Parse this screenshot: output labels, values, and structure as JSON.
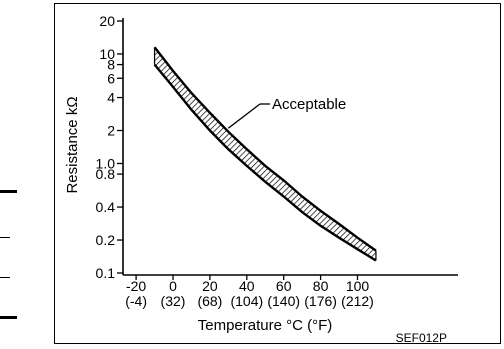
{
  "chart_data": {
    "type": "area",
    "title": "",
    "ylabel": "Resistance kΩ",
    "xlabel": "Temperature °C (°F)",
    "y_scale": "log",
    "ylim": [
      0.1,
      20
    ],
    "xlim": [
      -22,
      123
    ],
    "grid": false,
    "y_ticks": [
      {
        "value": 20,
        "label": "20"
      },
      {
        "value": 10,
        "label": "10"
      },
      {
        "value": 8,
        "label": "8"
      },
      {
        "value": 6,
        "label": "6"
      },
      {
        "value": 4,
        "label": "4"
      },
      {
        "value": 2,
        "label": "2"
      },
      {
        "value": 1.0,
        "label": "1.0"
      },
      {
        "value": 0.8,
        "label": "0.8"
      },
      {
        "value": 0.4,
        "label": "0.4"
      },
      {
        "value": 0.2,
        "label": "0.2"
      },
      {
        "value": 0.1,
        "label": "0.1"
      }
    ],
    "x_ticks": [
      {
        "value": -20,
        "label": "-20",
        "sublabel": "(-4)"
      },
      {
        "value": 0,
        "label": "0",
        "sublabel": "(32)"
      },
      {
        "value": 20,
        "label": "20",
        "sublabel": "(68)"
      },
      {
        "value": 40,
        "label": "40",
        "sublabel": "(104)"
      },
      {
        "value": 60,
        "label": "60",
        "sublabel": "(140)"
      },
      {
        "value": 80,
        "label": "80",
        "sublabel": "(176)"
      },
      {
        "value": 100,
        "label": "100",
        "sublabel": "(212)"
      }
    ],
    "series": [
      {
        "x": [
          -10,
          0,
          10,
          20,
          30,
          40,
          50,
          60,
          70,
          80,
          90,
          100,
          110
        ],
        "upper": [
          11.5,
          7.0,
          4.4,
          2.9,
          1.95,
          1.35,
          0.95,
          0.7,
          0.5,
          0.37,
          0.28,
          0.21,
          0.16
        ],
        "lower": [
          8.0,
          5.0,
          3.1,
          2.0,
          1.35,
          0.95,
          0.68,
          0.5,
          0.36,
          0.27,
          0.21,
          0.165,
          0.13
        ]
      }
    ],
    "annotations": [
      {
        "text": "Acceptable",
        "x": 30,
        "y": 2.1
      }
    ],
    "figure_code": "SEF012P"
  },
  "colors": {
    "ink": "#000000",
    "background": "#ffffff"
  }
}
